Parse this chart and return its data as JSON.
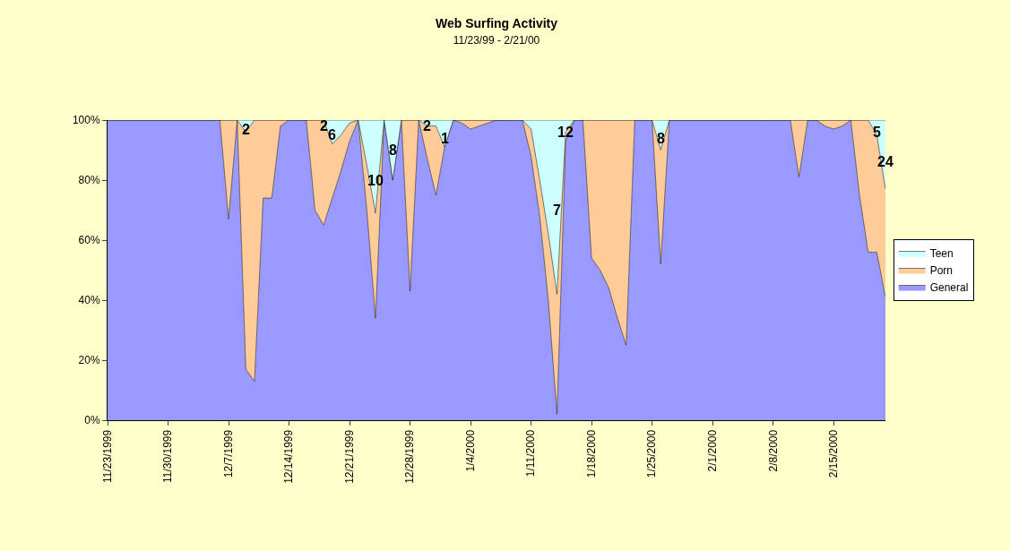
{
  "chart_data": {
    "type": "area",
    "stacked": true,
    "title": "Web Surfing Activity",
    "subtitle": "11/23/99 - 2/21/00",
    "x": [
      "1999-11-23",
      "1999-11-24",
      "1999-11-25",
      "1999-11-26",
      "1999-11-27",
      "1999-11-28",
      "1999-11-29",
      "1999-11-30",
      "1999-12-01",
      "1999-12-02",
      "1999-12-03",
      "1999-12-04",
      "1999-12-05",
      "1999-12-06",
      "1999-12-07",
      "1999-12-08",
      "1999-12-09",
      "1999-12-10",
      "1999-12-11",
      "1999-12-12",
      "1999-12-13",
      "1999-12-14",
      "1999-12-15",
      "1999-12-16",
      "1999-12-17",
      "1999-12-18",
      "1999-12-19",
      "1999-12-20",
      "1999-12-21",
      "1999-12-22",
      "1999-12-23",
      "1999-12-24",
      "1999-12-25",
      "1999-12-26",
      "1999-12-27",
      "1999-12-28",
      "1999-12-29",
      "1999-12-30",
      "1999-12-31",
      "2000-01-01",
      "2000-01-02",
      "2000-01-03",
      "2000-01-04",
      "2000-01-05",
      "2000-01-06",
      "2000-01-07",
      "2000-01-08",
      "2000-01-09",
      "2000-01-10",
      "2000-01-11",
      "2000-01-12",
      "2000-01-13",
      "2000-01-14",
      "2000-01-15",
      "2000-01-16",
      "2000-01-17",
      "2000-01-18",
      "2000-01-19",
      "2000-01-20",
      "2000-01-21",
      "2000-01-22",
      "2000-01-23",
      "2000-01-24",
      "2000-01-25",
      "2000-01-26",
      "2000-01-27",
      "2000-01-28",
      "2000-01-29",
      "2000-01-30",
      "2000-01-31",
      "2000-02-01",
      "2000-02-02",
      "2000-02-03",
      "2000-02-04",
      "2000-02-05",
      "2000-02-06",
      "2000-02-07",
      "2000-02-08",
      "2000-02-09",
      "2000-02-10",
      "2000-02-11",
      "2000-02-12",
      "2000-02-13",
      "2000-02-14",
      "2000-02-15",
      "2000-02-16",
      "2000-02-17",
      "2000-02-18",
      "2000-02-19",
      "2000-02-20",
      "2000-02-21"
    ],
    "series": [
      {
        "name": "General",
        "color": "#9999ff",
        "values": [
          100,
          100,
          100,
          100,
          100,
          100,
          100,
          100,
          100,
          100,
          100,
          100,
          100,
          100,
          67,
          100,
          17,
          13,
          74,
          74,
          98,
          100,
          100,
          100,
          70,
          65,
          74,
          83,
          93,
          100,
          70,
          34,
          100,
          80,
          100,
          43,
          100,
          87,
          75,
          91,
          100,
          99,
          97,
          98,
          99,
          100,
          100,
          100,
          100,
          88,
          68,
          40,
          2,
          93,
          100,
          100,
          54,
          50,
          44,
          34,
          25,
          100,
          100,
          100,
          52,
          100,
          100,
          100,
          100,
          100,
          100,
          100,
          100,
          100,
          100,
          100,
          100,
          100,
          100,
          100,
          81,
          100,
          100,
          98,
          97,
          98,
          100,
          75,
          56,
          56,
          41
        ]
      },
      {
        "name": "Porn",
        "color": "#ffcc99",
        "values": [
          0,
          0,
          0,
          0,
          0,
          0,
          0,
          0,
          0,
          0,
          0,
          0,
          0,
          0,
          33,
          0,
          79,
          87,
          26,
          26,
          2,
          0,
          0,
          0,
          30,
          35,
          18,
          12,
          6,
          0,
          15,
          35,
          0,
          0,
          0,
          57,
          0,
          11,
          23,
          0,
          0,
          1,
          3,
          2,
          1,
          0,
          0,
          0,
          0,
          9,
          12,
          22,
          40,
          3,
          0,
          0,
          46,
          50,
          56,
          66,
          75,
          0,
          0,
          0,
          38,
          0,
          0,
          0,
          0,
          0,
          0,
          0,
          0,
          0,
          0,
          0,
          0,
          0,
          0,
          0,
          19,
          0,
          0,
          2,
          3,
          2,
          0,
          25,
          44,
          39,
          36
        ]
      },
      {
        "name": "Teen",
        "color": "#ccffff",
        "values": [
          0,
          0,
          0,
          0,
          0,
          0,
          0,
          0,
          0,
          0,
          0,
          0,
          0,
          0,
          0,
          0,
          4,
          0,
          0,
          0,
          0,
          0,
          0,
          0,
          0,
          0,
          8,
          5,
          1,
          0,
          15,
          31,
          0,
          20,
          0,
          0,
          0,
          2,
          2,
          9,
          0,
          0,
          0,
          0,
          0,
          0,
          0,
          0,
          0,
          3,
          20,
          38,
          58,
          4,
          0,
          0,
          0,
          0,
          0,
          0,
          0,
          0,
          0,
          0,
          10,
          0,
          0,
          0,
          0,
          0,
          0,
          0,
          0,
          0,
          0,
          0,
          0,
          0,
          0,
          0,
          0,
          0,
          0,
          0,
          0,
          0,
          0,
          0,
          0,
          5,
          23
        ]
      }
    ],
    "xlim": [
      "1999-11-23",
      "2000-02-21"
    ],
    "xticks": [
      {
        "value": "1999-11-23",
        "label": "11/23/1999"
      },
      {
        "value": "1999-11-30",
        "label": "11/30/1999"
      },
      {
        "value": "1999-12-07",
        "label": "12/7/1999"
      },
      {
        "value": "1999-12-14",
        "label": "12/14/1999"
      },
      {
        "value": "1999-12-21",
        "label": "12/21/1999"
      },
      {
        "value": "1999-12-28",
        "label": "12/28/1999"
      },
      {
        "value": "2000-01-04",
        "label": "1/4/2000"
      },
      {
        "value": "2000-01-11",
        "label": "1/11/2000"
      },
      {
        "value": "2000-01-18",
        "label": "1/18/2000"
      },
      {
        "value": "2000-01-25",
        "label": "1/25/2000"
      },
      {
        "value": "2000-02-01",
        "label": "2/1/2000"
      },
      {
        "value": "2000-02-08",
        "label": "2/8/2000"
      },
      {
        "value": "2000-02-15",
        "label": "2/15/2000"
      }
    ],
    "ylim": [
      0,
      100
    ],
    "yticks": [
      {
        "value": 0,
        "label": "0%"
      },
      {
        "value": 20,
        "label": "20%"
      },
      {
        "value": 40,
        "label": "40%"
      },
      {
        "value": 60,
        "label": "60%"
      },
      {
        "value": 80,
        "label": "80%"
      },
      {
        "value": 100,
        "label": "100%"
      }
    ],
    "legend": "right",
    "annotations": [
      {
        "text": "2",
        "x": "1999-12-09",
        "y": 97
      },
      {
        "text": "2",
        "x": "1999-12-18",
        "y": 98
      },
      {
        "text": "6",
        "x": "1999-12-19",
        "y": 95
      },
      {
        "text": "10",
        "x": "1999-12-24",
        "y": 80
      },
      {
        "text": "8",
        "x": "1999-12-26",
        "y": 90
      },
      {
        "text": "2",
        "x": "1999-12-30",
        "y": 98
      },
      {
        "text": "1",
        "x": "2000-01-01",
        "y": 94
      },
      {
        "text": "12",
        "x": "2000-01-15",
        "y": 96
      },
      {
        "text": "7",
        "x": "2000-01-14",
        "y": 70
      },
      {
        "text": "8",
        "x": "2000-01-26",
        "y": 94
      },
      {
        "text": "5",
        "x": "2000-02-20",
        "y": 96
      },
      {
        "text": "24",
        "x": "2000-02-21",
        "y": 86
      }
    ]
  }
}
